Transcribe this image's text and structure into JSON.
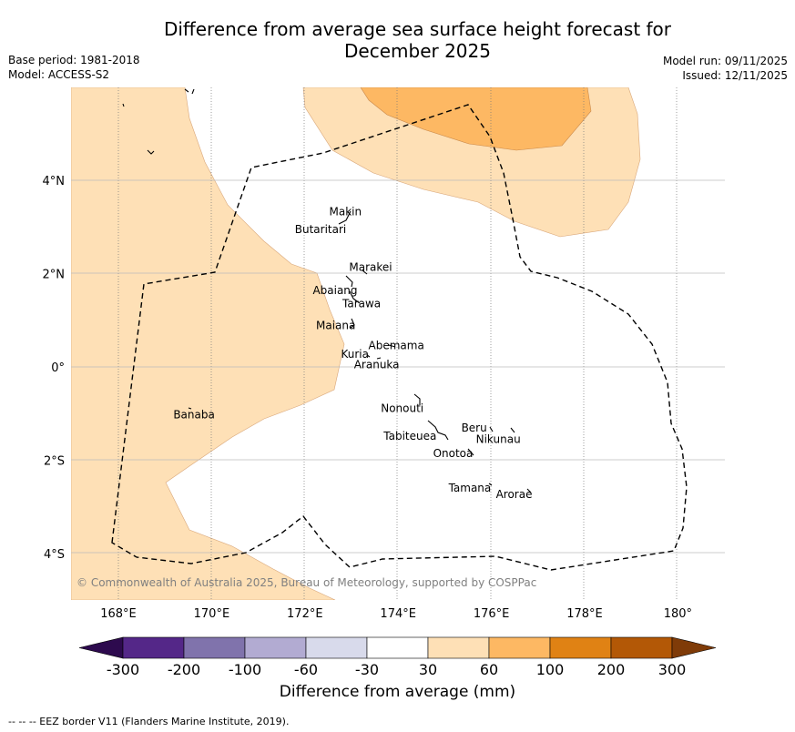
{
  "header": {
    "title_line1": "Difference from average sea surface height forecast for",
    "title_line2": "December 2025",
    "base_period": "Base period: 1981-2018",
    "model": "Model: ACCESS-S2",
    "model_run": "Model run: 09/11/2025",
    "issued": "Issued: 12/11/2025"
  },
  "map": {
    "lon_ticks": [
      "168°E",
      "170°E",
      "172°E",
      "174°E",
      "176°E",
      "178°E",
      "180°"
    ],
    "lat_ticks": [
      "4°N",
      "2°N",
      "0°",
      "2°S",
      "4°S"
    ],
    "copyright": "© Commonwealth of Australia 2025, Bureau of Meteorology, supported by COSPPac",
    "islands": [
      {
        "name": "Makin",
        "lon": 172.99,
        "lat": 3.13
      },
      {
        "name": "Butaritari",
        "lon": 172.8,
        "lat": 3.07
      },
      {
        "name": "Marakei",
        "lon": 173.3,
        "lat": 2.0
      },
      {
        "name": "Abaiang",
        "lon": 172.95,
        "lat": 1.82
      },
      {
        "name": "Tarawa",
        "lon": 173.0,
        "lat": 1.42
      },
      {
        "name": "Maiana",
        "lon": 173.02,
        "lat": 0.93
      },
      {
        "name": "Abemama",
        "lon": 173.87,
        "lat": 0.4
      },
      {
        "name": "Kuria",
        "lon": 173.4,
        "lat": 0.23
      },
      {
        "name": "Aranuka",
        "lon": 173.6,
        "lat": 0.17
      },
      {
        "name": "Banaba",
        "lon": 169.53,
        "lat": -0.87
      },
      {
        "name": "Nonouti",
        "lon": 174.45,
        "lat": -0.67
      },
      {
        "name": "Tabiteuea",
        "lon": 174.9,
        "lat": -1.35
      },
      {
        "name": "Beru",
        "lon": 175.98,
        "lat": -1.33
      },
      {
        "name": "Nikunau",
        "lon": 176.45,
        "lat": -1.36
      },
      {
        "name": "Onotoa",
        "lon": 175.57,
        "lat": -1.8
      },
      {
        "name": "Tamana",
        "lon": 175.98,
        "lat": -2.5
      },
      {
        "name": "Arorae",
        "lon": 176.82,
        "lat": -2.64
      }
    ]
  },
  "colorbar": {
    "ticks": [
      "-300",
      "-200",
      "-100",
      "-60",
      "-30",
      "30",
      "60",
      "100",
      "200",
      "300"
    ],
    "colors": [
      "#2d0a4e",
      "#542788",
      "#8073ac",
      "#b2abd2",
      "#d8daeb",
      "#ffffff",
      "#fee0b6",
      "#fdb863",
      "#e08214",
      "#b35806",
      "#7f3b08"
    ],
    "label": "Difference from average (mm)"
  },
  "footer": "--  --  -- EEZ border V11 (Flanders Marine Institute, 2019)."
}
